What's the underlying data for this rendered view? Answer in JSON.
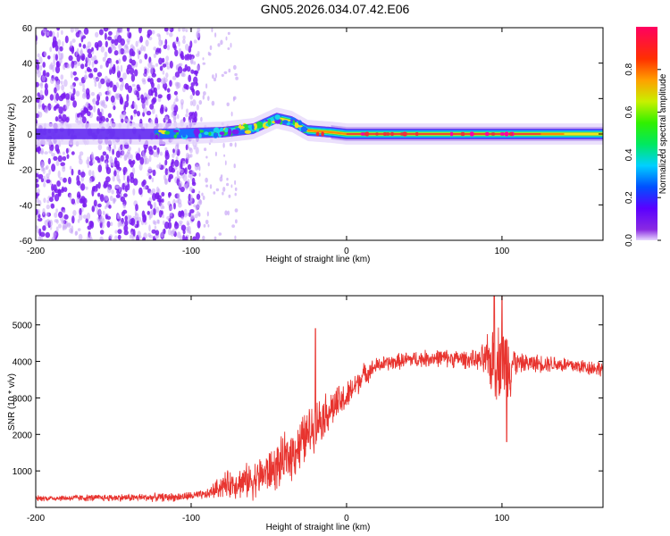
{
  "title": "GN05.2026.034.07.42.E06",
  "colors": {
    "snr_line": "#e8342f",
    "dot_low": "#7a1cf0",
    "dot_faint": "#c9a8f7",
    "band_green": "#22d94a",
    "band_red": "#f0303a"
  },
  "chart_data": [
    {
      "type": "heatmap",
      "name": "spectrogram",
      "xlabel": "Height of straight line (km)",
      "ylabel": "Frequency (Hz)",
      "xlim": [
        -200,
        165
      ],
      "ylim": [
        -60,
        60
      ],
      "xticks": [
        -200,
        -100,
        0,
        100
      ],
      "xtick_labels": [
        "-200",
        "-100",
        "0",
        "100"
      ],
      "yticks": [
        -60,
        -40,
        -20,
        0,
        20,
        40,
        60
      ],
      "ytick_labels": [
        "-60",
        "-40",
        "-20",
        "0",
        "20",
        "40",
        "60"
      ],
      "colorbar": {
        "label": "Normalized spectral amplitude",
        "range": [
          0,
          1
        ],
        "ticks": [
          0,
          0.2,
          0.4,
          0.6,
          0.8
        ],
        "tick_labels": [
          "0.0",
          "0.2",
          "0.4",
          "0.6",
          "0.8"
        ],
        "colormap": "rainbow: violet (0) - blue - cyan - green - yellow - orange - red - magenta (1)"
      },
      "features": [
        {
          "label": "broadband noise",
          "x_range": [
            -200,
            -95
          ],
          "amplitude": 0.05
        },
        {
          "label": "sparse noise",
          "x_range": [
            -95,
            -70
          ],
          "amplitude": 0.02
        },
        {
          "label": "signal track",
          "points": [
            [
              -120,
              0
            ],
            [
              -80,
              1
            ],
            [
              -60,
              3
            ],
            [
              -45,
              9
            ],
            [
              -35,
              7
            ],
            [
              -25,
              2
            ],
            [
              -10,
              1
            ],
            [
              0,
              0
            ],
            [
              165,
              0
            ]
          ],
          "amplitude_max": 1.0
        }
      ]
    },
    {
      "type": "line",
      "name": "snr",
      "xlabel": "Height of straight line (km)",
      "ylabel": "SNR (10 * v/v)",
      "xlim": [
        -200,
        165
      ],
      "ylim": [
        0,
        5800
      ],
      "xticks": [
        -200,
        -100,
        0,
        100
      ],
      "xtick_labels": [
        "-200",
        "-100",
        "0",
        "100"
      ],
      "yticks": [
        1000,
        2000,
        3000,
        4000,
        5000
      ],
      "ytick_labels": [
        "1000",
        "2000",
        "3000",
        "4000",
        "5000"
      ],
      "series": [
        {
          "name": "SNR",
          "trend": [
            [
              -200,
              250
            ],
            [
              -110,
              280
            ],
            [
              -90,
              350
            ],
            [
              -80,
              600
            ],
            [
              -60,
              750
            ],
            [
              -45,
              1100
            ],
            [
              -30,
              1700
            ],
            [
              -20,
              2300
            ],
            [
              -10,
              2700
            ],
            [
              0,
              3000
            ],
            [
              10,
              3600
            ],
            [
              20,
              3900
            ],
            [
              40,
              4050
            ],
            [
              60,
              4100
            ],
            [
              80,
              4050
            ],
            [
              95,
              4000
            ],
            [
              110,
              3950
            ],
            [
              130,
              3950
            ],
            [
              165,
              3800
            ]
          ],
          "noise_amplitude": [
            [
              -200,
              90
            ],
            [
              -90,
              150
            ],
            [
              -80,
              400
            ],
            [
              -30,
              900
            ],
            [
              0,
              500
            ],
            [
              20,
              250
            ],
            [
              85,
              300
            ],
            [
              95,
              1200
            ],
            [
              105,
              1200
            ],
            [
              110,
              300
            ],
            [
              165,
              250
            ]
          ],
          "peaks": [
            [
              -20,
              4900
            ],
            [
              95,
              5800
            ],
            [
              100,
              5900
            ],
            [
              103,
              1800
            ]
          ]
        }
      ]
    }
  ]
}
